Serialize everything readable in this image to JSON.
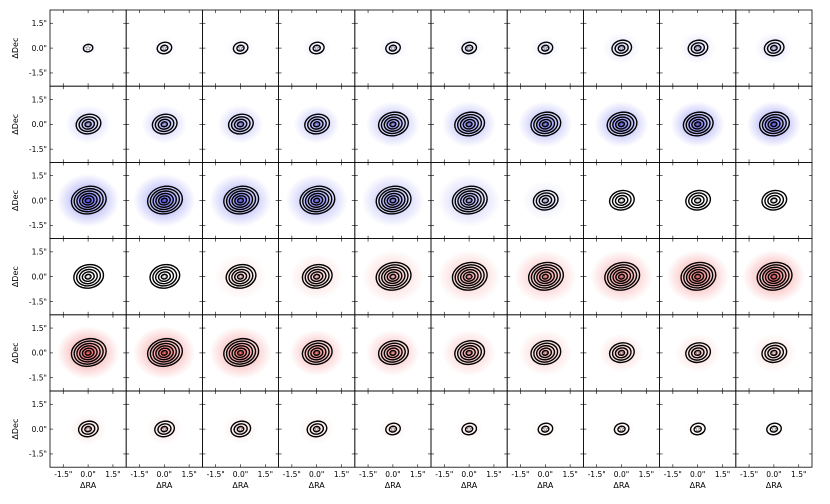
{
  "chart_data": {
    "type": "contour-grid",
    "rows": 6,
    "cols": 10,
    "xlabel": "ΔRA",
    "ylabel": "ΔDec",
    "x_ticks": [
      -1.5,
      0.0,
      1.5
    ],
    "y_ticks": [
      1.5,
      0.0,
      -1.5
    ],
    "x_tick_labels": [
      "-1.5\"",
      "0.0\"",
      "1.5\""
    ],
    "y_tick_labels": [
      "1.5\"",
      "0.0\"",
      "-1.5\""
    ],
    "xlim": [
      -2.3,
      2.3
    ],
    "ylim": [
      -2.3,
      2.3
    ],
    "colors": {
      "blue": "#4a4af0",
      "red": "#f04a4a",
      "contour": "#000000"
    },
    "panels": [
      {
        "n": 1,
        "kind": "blue",
        "intensity": 0.1
      },
      {
        "n": 2,
        "kind": "blue",
        "intensity": 0.12
      },
      {
        "n": 2,
        "kind": "blue",
        "intensity": 0.14
      },
      {
        "n": 2,
        "kind": "blue",
        "intensity": 0.16
      },
      {
        "n": 2,
        "kind": "blue",
        "intensity": 0.18
      },
      {
        "n": 2,
        "kind": "blue",
        "intensity": 0.2
      },
      {
        "n": 2,
        "kind": "blue",
        "intensity": 0.22
      },
      {
        "n": 3,
        "kind": "blue",
        "intensity": 0.24
      },
      {
        "n": 3,
        "kind": "blue",
        "intensity": 0.26
      },
      {
        "n": 3,
        "kind": "blue",
        "intensity": 0.28
      },
      {
        "n": 4,
        "kind": "blue",
        "intensity": 0.45
      },
      {
        "n": 4,
        "kind": "blue",
        "intensity": 0.5
      },
      {
        "n": 4,
        "kind": "blue",
        "intensity": 0.55
      },
      {
        "n": 4,
        "kind": "blue",
        "intensity": 0.6
      },
      {
        "n": 5,
        "kind": "blue",
        "intensity": 0.65
      },
      {
        "n": 5,
        "kind": "blue",
        "intensity": 0.7
      },
      {
        "n": 5,
        "kind": "blue",
        "intensity": 0.75
      },
      {
        "n": 5,
        "kind": "blue",
        "intensity": 0.8
      },
      {
        "n": 5,
        "kind": "blue",
        "intensity": 0.85
      },
      {
        "n": 5,
        "kind": "blue",
        "intensity": 0.9
      },
      {
        "n": 6,
        "kind": "blue",
        "intensity": 0.95
      },
      {
        "n": 6,
        "kind": "blue",
        "intensity": 0.9
      },
      {
        "n": 6,
        "kind": "blue",
        "intensity": 0.85
      },
      {
        "n": 6,
        "kind": "blue",
        "intensity": 0.75
      },
      {
        "n": 6,
        "kind": "blue",
        "intensity": 0.65
      },
      {
        "n": 6,
        "kind": "blue",
        "intensity": 0.5
      },
      {
        "n": 4,
        "kind": "blue",
        "intensity": 0.25
      },
      {
        "n": 4,
        "kind": "none",
        "intensity": 0
      },
      {
        "n": 4,
        "kind": "none",
        "intensity": 0
      },
      {
        "n": 4,
        "kind": "none",
        "intensity": 0
      },
      {
        "n": 5,
        "kind": "none",
        "intensity": 0
      },
      {
        "n": 5,
        "kind": "none",
        "intensity": 0
      },
      {
        "n": 5,
        "kind": "red",
        "intensity": 0.25
      },
      {
        "n": 5,
        "kind": "red",
        "intensity": 0.35
      },
      {
        "n": 6,
        "kind": "red",
        "intensity": 0.45
      },
      {
        "n": 6,
        "kind": "red",
        "intensity": 0.55
      },
      {
        "n": 6,
        "kind": "red",
        "intensity": 0.65
      },
      {
        "n": 6,
        "kind": "red",
        "intensity": 0.75
      },
      {
        "n": 6,
        "kind": "red",
        "intensity": 0.85
      },
      {
        "n": 6,
        "kind": "red",
        "intensity": 0.9
      },
      {
        "n": 6,
        "kind": "red",
        "intensity": 0.95
      },
      {
        "n": 6,
        "kind": "red",
        "intensity": 0.9
      },
      {
        "n": 6,
        "kind": "red",
        "intensity": 0.85
      },
      {
        "n": 5,
        "kind": "red",
        "intensity": 0.75
      },
      {
        "n": 5,
        "kind": "red",
        "intensity": 0.65
      },
      {
        "n": 5,
        "kind": "red",
        "intensity": 0.55
      },
      {
        "n": 5,
        "kind": "red",
        "intensity": 0.45
      },
      {
        "n": 4,
        "kind": "red",
        "intensity": 0.4
      },
      {
        "n": 4,
        "kind": "red",
        "intensity": 0.35
      },
      {
        "n": 4,
        "kind": "red",
        "intensity": 0.3
      },
      {
        "n": 3,
        "kind": "red",
        "intensity": 0.25
      },
      {
        "n": 3,
        "kind": "red",
        "intensity": 0.22
      },
      {
        "n": 3,
        "kind": "red",
        "intensity": 0.2
      },
      {
        "n": 3,
        "kind": "red",
        "intensity": 0.18
      },
      {
        "n": 2,
        "kind": "red",
        "intensity": 0.16
      },
      {
        "n": 2,
        "kind": "red",
        "intensity": 0.14
      },
      {
        "n": 2,
        "kind": "red",
        "intensity": 0.12
      },
      {
        "n": 2,
        "kind": "red",
        "intensity": 0.1
      },
      {
        "n": 2,
        "kind": "red",
        "intensity": 0.08
      },
      {
        "n": 2,
        "kind": "red",
        "intensity": 0.06
      }
    ]
  }
}
